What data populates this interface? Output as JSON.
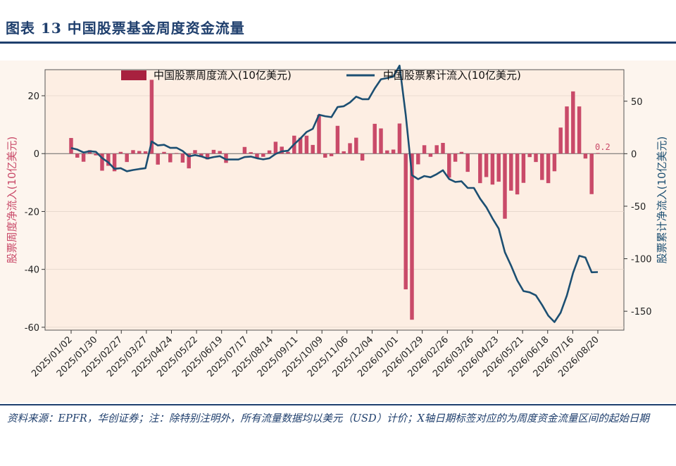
{
  "figure": {
    "title": "图表 13 中国股票基金周度资金流量",
    "source": "资料来源：EPFR，华创证券；注：除特别注明外，所有流量数据均以美元（USD）计价；X轴日期标签对应的为周度资金流量区间的起始日期"
  },
  "chart_data": {
    "type": "bar+line",
    "legend": [
      "中国股票周度流入(10亿美元)",
      "中国股票累计流入(10亿美元)"
    ],
    "legend_position": "top-center",
    "ylabel_left": "股票周度净流入(10亿美元)",
    "ylabel_right": "股票累计净流入(10亿美元)",
    "ylim_left": [
      -61,
      29
    ],
    "ylim_right": [
      -168,
      80
    ],
    "yticks_left": [
      "20",
      "0",
      "-20",
      "-40",
      "-60"
    ],
    "yticks_right": [
      "50",
      "0",
      "-50",
      "-100",
      "-150"
    ],
    "yticks_left_values": [
      20,
      0,
      -20,
      -40,
      -60
    ],
    "yticks_right_values": [
      50,
      0,
      -50,
      -100,
      -150
    ],
    "xtick_labels": [
      "2025/01/02",
      "2025/01/30",
      "2025/02/27",
      "2025/03/27",
      "2025/04/24",
      "2025/05/22",
      "2025/06/19",
      "2025/07/17",
      "2025/08/14",
      "2025/09/11",
      "2025/10/09",
      "2025/11/06",
      "2025/12/04",
      "2026/01/01",
      "2026/01/29",
      "2026/02/26",
      "2026/03/26",
      "2026/04/23",
      "2026/05/21",
      "2026/06/18",
      "2026/07/16",
      "2026/08/20"
    ],
    "last_value_label": "0.2",
    "weekly_inflow": [
      5.4,
      -1.4,
      -2.8,
      1.2,
      -0.6,
      -5.9,
      -4.2,
      -6.1,
      0.6,
      -2.9,
      1.2,
      0.9,
      0.8,
      25.5,
      -3.8,
      0.6,
      -3.0,
      0.2,
      -3.1,
      -5.1,
      1.2,
      -1.2,
      -2.0,
      1.3,
      0.9,
      -3.2,
      0,
      0,
      2.3,
      0.5,
      -1.6,
      -1.1,
      1.1,
      4.1,
      2.4,
      0.6,
      6.2,
      5.5,
      6.2,
      3.0,
      13.4,
      -1.4,
      -0.9,
      9.6,
      0.8,
      3.6,
      5.5,
      -2.4,
      0,
      10.3,
      8.7,
      1.1,
      1.4,
      10.4,
      -46.9,
      -57.4,
      -3.7,
      2.9,
      -1.1,
      2.9,
      3.7,
      -8.3,
      -2.8,
      0.6,
      -6.3,
      0,
      -10.2,
      -8.1,
      -10.7,
      -9.7,
      -22.5,
      -12.8,
      -14.1,
      -10.1,
      -1.2,
      -2.9,
      -9.1,
      -10.2,
      -6.1,
      9.0,
      16.3,
      21.5,
      16.3,
      -1.7,
      -14.0,
      0.2
    ],
    "cumulative_inflow": [
      5.4,
      4.0,
      1.2,
      2.4,
      1.8,
      -4.1,
      -8.3,
      -14.4,
      -13.8,
      -16.7,
      -15.5,
      -14.6,
      -13.8,
      11.7,
      7.9,
      8.5,
      5.5,
      5.7,
      2.6,
      -2.5,
      -1.3,
      -2.5,
      -4.5,
      -3.2,
      -2.3,
      -5.5,
      -5.5,
      -5.5,
      -3.2,
      -2.7,
      -4.3,
      -5.4,
      -4.3,
      -0.2,
      2.2,
      2.8,
      9.0,
      14.5,
      20.7,
      23.7,
      37.1,
      35.7,
      34.8,
      44.4,
      45.2,
      48.8,
      54.3,
      51.9,
      51.9,
      62.2,
      70.9,
      72.0,
      73.4,
      83.8,
      36.9,
      -20.5,
      -24.2,
      -21.3,
      -22.4,
      -19.5,
      -15.8,
      -24.1,
      -26.9,
      -26.3,
      -32.6,
      -32.6,
      -42.8,
      -50.9,
      -61.6,
      -71.3,
      -93.8,
      -106.6,
      -120.7,
      -130.8,
      -132.0,
      -134.9,
      -144.0,
      -154.2,
      -160.3,
      -151.3,
      -135.0,
      -113.5,
      -97.2,
      -98.9,
      -112.9,
      -112.7
    ]
  },
  "colors": {
    "bar": "#c94a69",
    "line": "#1c4f72",
    "plot_bg": "#fdeee3",
    "frame_bg": "#fdf5ee",
    "title": "#1f3f6d"
  }
}
